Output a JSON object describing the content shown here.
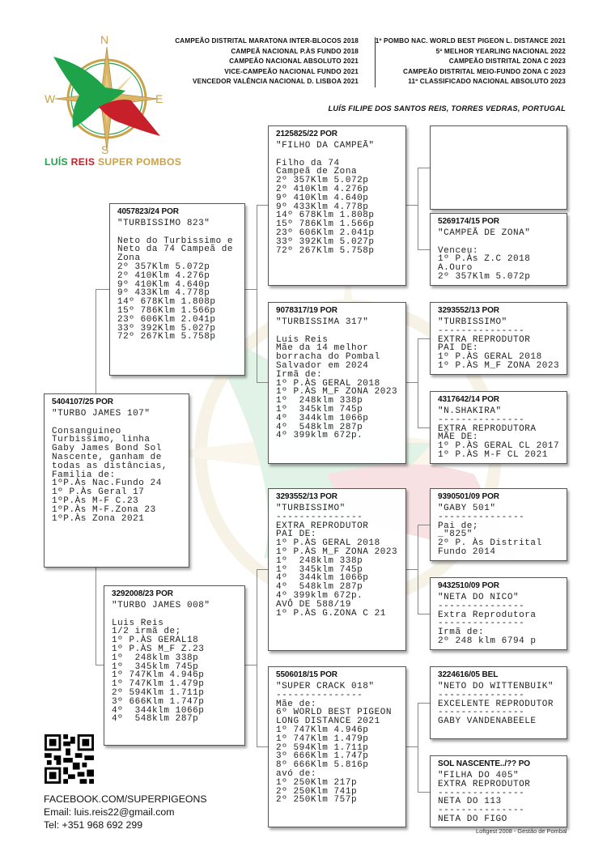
{
  "header": {
    "achievements_left": [
      "CAMPEÃO DISTRITAL MARATONA INTER-BLOCOS 2018",
      "CAMPEÃ NACIONAL P.ÀS FUNDO 2018",
      "CAMPEÃO NACIONAL ABSOLUTO 2021",
      "VICE-CAMPEÃO NACIONAL FUNDO 2021",
      "VENCEDOR VALÊNCIA NACIONAL D. LISBOA 2021"
    ],
    "achievements_right": [
      "1º POMBO NAC. WORLD BEST PIGEON L. DISTANCE 2021",
      "5º MELHOR YEARLING NACIONAL 2022",
      "CAMPEÃO DISTRITAL ZONA C 2023",
      "CAMPEÃO DISTRITAL MEIO-FUNDO ZONA C 2023",
      "11º CLASSIFICADO NACIONAL ABSOLUTO 2023"
    ],
    "owner": "LUÍS FILIPE DOS SANTOS REIS, TORRES VEDRAS, PORTUGAL"
  },
  "logo": {
    "compass": {
      "n": "N",
      "e": "E",
      "s": "S",
      "w": "W"
    },
    "text_part1": "LUÍS",
    "text_part2": "REIS",
    "text_part3": "SUPER POMBOS",
    "colors": {
      "green": "#1fa34a",
      "red": "#c8202a",
      "gold": "#c9a24a"
    }
  },
  "pedigree": {
    "subject": {
      "ring": "5404107/25 POR",
      "name": "\"TURBO JAMES 107\"",
      "body": "Consanguineo\nTurbissimo, linha\nGaby James Bond Sol\nNascente, ganham de\ntodas as distâncias,\nFamilia de:\n1ºP.Às Nac.Fundo 24\n1º P.Às Geral 17\n1ºP.Às M-F C.23\n1ºP.Às M-F.Zona 23\n1ºP.Às Zona 2021"
    },
    "sire": {
      "ring": "4057823/24 POR",
      "name": "\"TURBISSIMO 823\"",
      "body": "Neto do Turbissimo e\nNeto da 74 Campeã de\nZona\n2º 357Klm 5.072p\n2º 410Klm 4.276p\n9º 410Klm 4.640p\n9º 433Klm 4.778p\n14º 678Klm 1.808p\n15º 786Klm 1.566p\n23º 606Klm 2.041p\n33º 392Klm 5.027p\n72º 267Klm 5.758p"
    },
    "dam": {
      "ring": "3292008/23 POR",
      "name": "\"TURBO JAMES 008\"",
      "body": "Luis Reis\n1/2 irmã de;\n1º P.ÀS GERAL18\n1º P.ÀS M_F Z.23\n1º  248klm 338p\n1º  345klm 745p\n1º 747Klm 4.946p\n1º 747Klm 1.479p\n2º 594Klm 1.711p\n3º 666Klm 1.747p\n4º  344klm 1066p\n4º  548klm 287p"
    },
    "sire_sire": {
      "ring": "2125825/22 POR",
      "name": "\"FILHO DA CAMPEÃ\"",
      "body": "Filho da 74\nCampeã de Zona\n2º 357Klm 5.072p\n2º 410Klm 4.276p\n9º 410Klm 4.640p\n9º 433Klm 4.778p\n14º 678Klm 1.808p\n15º 786Klm 1.566p\n23º 606Klm 2.041p\n33º 392Klm 5.027p\n72º 267Klm 5.758p"
    },
    "sire_dam": {
      "ring": "9078317/19 POR",
      "name": "\"TURBISSIMA 317\"",
      "body": "Luis Reis\nMãe da 14 melhor\nborracha do Pombal\nSalvador em 2024\nIrmã de:\n1º P.ÀS GERAL 2018\n1º P.ÀS M_F ZONA 2023\n1º  248klm 338p\n1º  345klm 745p\n4º  344klm 1066p\n4º  548klm 287p\n4º 399klm 672p."
    },
    "dam_sire": {
      "ring": "3293552/13 POR",
      "name": "\"TURBISSIMO\"",
      "body": "---------------\nEXTRA REPRODUTOR\nPAI DE:\n1º P.ÀS GERAL 2018\n1º P.ÀS M_F ZONA 2023\n1º  248klm 338p\n1º  345klm 745p\n4º  344klm 1066p\n4º  548klm 287p\n4º 399klm 672p.\nAVÔ DE 588/19\n1º P.ÀS G.ZONA C 21"
    },
    "dam_dam": {
      "ring": "5506018/15 POR",
      "name": "\"SUPER CRACK 018\"",
      "body": "---------------\nMãe de:\n6º WORLD BEST PIGEON\nLONG DISTANCE 2021\n1º 747Klm 4.946p\n1º 747Klm 1.479p\n2º 594Klm 1.711p\n3º 666Klm 1.747p\n8º 666Klm 5.816p\navó de:\n1º 250Klm 217p\n2º 250Klm 741p\n2º 250Klm 757p"
    },
    "ggp1": {
      "ring": "",
      "name": "",
      "body": ""
    },
    "ggp2": {
      "ring": "5269174/15 POR",
      "name": "\"CAMPEÃ DE ZONA\"",
      "body": "Venceu:\n1º P.Às Z.C 2018\nA.Ouro\n2º 357Klm 5.072p"
    },
    "ggp3": {
      "ring": "3293552/13 POR",
      "name": "\"TURBISSIMO\"",
      "body": "---------------\nEXTRA REPRODUTOR\nPAI DE:\n1º P.ÀS GERAL 2018\n1º P.ÀS M_F ZONA 2023"
    },
    "ggp4": {
      "ring": "4317642/14 POR",
      "name": "\"N.SHAKIRA\"",
      "body": "---------------\nEXTRA REPRODUTORA\nMÃE DE:\n1º P.ÀS GERAL CL 2017\n1º P.ÀS M-F CL 2021"
    },
    "ggp5": {
      "ring": "9390501/09 POR",
      "name": "\"GABY 501\"",
      "body": "---------------\nPai de;\n_\"825\"\n2º P. Às Distrital\nFundo 2014"
    },
    "ggp6": {
      "ring": "9432510/09 POR",
      "name": "\"NETA DO NICO\"",
      "body": "---------------\nExtra Reprodutora\n---------------\nIrmã de:\n2º 248 klm 6794 p"
    },
    "ggp7": {
      "ring": "3224616/05 BEL",
      "name": "\"NETO DO WITTENBUIK\"",
      "body": "---------------\nEXCELENTE REPRODUTOR\n---------------\nGABY VANDENABEELE"
    },
    "ggp8": {
      "ring": "SOL NASCENTE../?? PO",
      "name": "\"FILHA DO 405\"",
      "body": "EXTRA REPRODUTOR\n---------------\nNETA DO 113\n---------------\nNETA DO FIGO"
    }
  },
  "contact": {
    "qr_icon": "qr-code",
    "facebook": "FACEBOOK.COM/SUPERPIGEONS",
    "email": "Email: luis.reis22@gmail.com",
    "phone": "Tel: +351 968 692 299"
  },
  "footer": "Loftgest 2008 - Gestão de Pombal"
}
